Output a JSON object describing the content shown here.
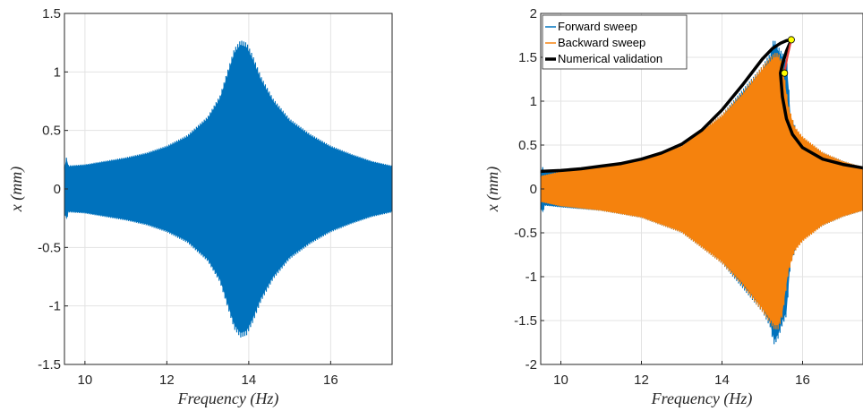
{
  "chart_data": [
    {
      "type": "line",
      "title": "",
      "xlabel": "Frequency (Hz)",
      "ylabel": "x (mm)",
      "xlim": [
        9.5,
        17.5
      ],
      "ylim": [
        -1.5,
        1.5
      ],
      "xticks": [
        10,
        12,
        14,
        16
      ],
      "yticks": [
        -1.5,
        -1,
        -0.5,
        0,
        0.5,
        1,
        1.5
      ],
      "grid": true,
      "series": [
        {
          "color": "#0072BD",
          "kind": "envelope",
          "x": [
            9.5,
            9.55,
            9.6,
            10,
            10.5,
            11,
            11.5,
            12,
            12.5,
            13,
            13.3,
            13.5,
            13.65,
            13.8,
            13.95,
            14.1,
            14.3,
            14.6,
            15,
            15.5,
            16,
            16.5,
            17,
            17.5
          ],
          "upper": [
            0.19,
            0.27,
            0.2,
            0.21,
            0.24,
            0.27,
            0.31,
            0.37,
            0.46,
            0.62,
            0.8,
            1.03,
            1.2,
            1.27,
            1.25,
            1.14,
            0.96,
            0.77,
            0.6,
            0.47,
            0.37,
            0.3,
            0.24,
            0.2
          ],
          "lower": [
            -0.19,
            -0.27,
            -0.2,
            -0.21,
            -0.24,
            -0.27,
            -0.31,
            -0.37,
            -0.46,
            -0.62,
            -0.8,
            -1.03,
            -1.2,
            -1.27,
            -1.25,
            -1.14,
            -0.96,
            -0.77,
            -0.6,
            -0.47,
            -0.37,
            -0.3,
            -0.24,
            -0.2
          ]
        }
      ]
    },
    {
      "type": "line",
      "title": "",
      "xlabel": "Frequency (Hz)",
      "ylabel": "x (mm)",
      "xlim": [
        9.5,
        17.5
      ],
      "ylim": [
        -2,
        2
      ],
      "xticks": [
        10,
        12,
        14,
        16
      ],
      "yticks": [
        -2,
        -1.5,
        -1,
        -0.5,
        0,
        0.5,
        1,
        1.5,
        2
      ],
      "grid": true,
      "legend": "top-left",
      "series": [
        {
          "name": "Forward sweep",
          "color": "#0072BD",
          "kind": "envelope",
          "x": [
            9.5,
            9.55,
            9.6,
            10,
            11,
            12,
            13,
            14,
            15,
            15.2,
            15.25,
            15.3,
            15.4,
            15.5,
            15.6,
            15.65,
            15.7,
            15.9,
            16.5,
            17,
            17.5
          ],
          "upper": [
            0.2,
            0.25,
            0.19,
            0.21,
            0.25,
            0.33,
            0.5,
            0.85,
            1.4,
            1.55,
            1.68,
            1.7,
            1.62,
            1.55,
            1.5,
            1.2,
            0.85,
            0.62,
            0.42,
            0.32,
            0.25
          ],
          "lower": [
            -0.2,
            -0.28,
            -0.19,
            -0.21,
            -0.25,
            -0.33,
            -0.5,
            -0.85,
            -1.4,
            -1.58,
            -1.7,
            -1.78,
            -1.7,
            -1.55,
            -1.45,
            -1.15,
            -0.85,
            -0.62,
            -0.42,
            -0.32,
            -0.25
          ]
        },
        {
          "name": "Backward sweep",
          "color": "#F5820D",
          "kind": "envelope",
          "x": [
            9.5,
            10,
            11,
            12,
            13,
            14,
            14.5,
            15,
            15.3,
            15.4,
            15.5,
            15.65,
            15.8,
            16,
            16.5,
            17,
            17.5
          ],
          "upper": [
            0.15,
            0.2,
            0.25,
            0.33,
            0.5,
            0.85,
            1.1,
            1.4,
            1.55,
            1.55,
            1.45,
            0.95,
            0.72,
            0.6,
            0.42,
            0.32,
            0.25
          ],
          "lower": [
            -0.15,
            -0.2,
            -0.25,
            -0.33,
            -0.5,
            -0.85,
            -1.1,
            -1.4,
            -1.6,
            -1.6,
            -1.45,
            -0.95,
            -0.72,
            -0.6,
            -0.42,
            -0.32,
            -0.25
          ]
        },
        {
          "name": "Numerical validation",
          "color": "#000000",
          "kind": "line",
          "x": [
            9.5,
            10,
            10.5,
            11,
            11.5,
            12,
            12.5,
            13,
            13.5,
            14,
            14.5,
            15,
            15.25,
            15.45,
            15.6,
            15.72,
            15.6,
            15.5,
            15.45,
            15.5,
            15.6,
            15.75,
            16,
            16.5,
            17,
            17.5
          ],
          "y": [
            0.2,
            0.21,
            0.23,
            0.26,
            0.29,
            0.34,
            0.41,
            0.51,
            0.67,
            0.9,
            1.18,
            1.48,
            1.6,
            1.66,
            1.69,
            1.7,
            1.57,
            1.42,
            1.32,
            1.05,
            0.8,
            0.62,
            0.47,
            0.34,
            0.28,
            0.24
          ]
        },
        {
          "name": "",
          "color": "#E8413A",
          "kind": "line",
          "x": [
            15.55,
            15.62,
            15.72
          ],
          "y": [
            1.32,
            1.5,
            1.7
          ]
        }
      ],
      "markers": [
        {
          "x": 15.72,
          "y": 1.7,
          "color": "#FFFF00"
        },
        {
          "x": 15.55,
          "y": 1.32,
          "color": "#FFFF00"
        }
      ]
    }
  ]
}
